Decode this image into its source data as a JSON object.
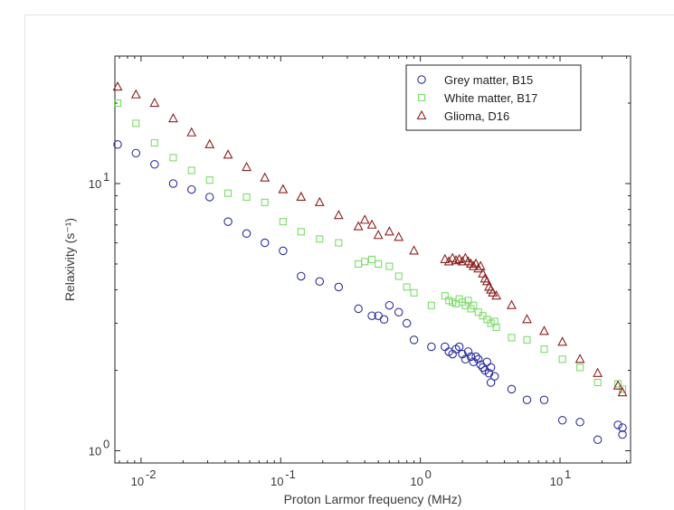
{
  "chart_data": {
    "type": "scatter",
    "title": "",
    "xlabel": "Proton Larmor frequency (MHz)",
    "ylabel": "Relaxivity (s⁻¹)",
    "xscale": "log",
    "yscale": "log",
    "xlim": [
      0.0065,
      32
    ],
    "ylim": [
      0.9,
      30
    ],
    "grid": false,
    "legend_position": "top-right",
    "x_ticks": [
      {
        "value": 0.01,
        "mantissa": "10",
        "exp": "-2"
      },
      {
        "value": 0.1,
        "mantissa": "10",
        "exp": "-1"
      },
      {
        "value": 1,
        "mantissa": "10",
        "exp": "0"
      },
      {
        "value": 10,
        "mantissa": "10",
        "exp": "1"
      }
    ],
    "y_ticks": [
      {
        "value": 1,
        "mantissa": "10",
        "exp": "0"
      },
      {
        "value": 10,
        "mantissa": "10",
        "exp": "1"
      }
    ],
    "series": [
      {
        "name": "Grey matter, B15",
        "marker": "circle",
        "color": "#2f2f9e",
        "points": [
          [
            0.0068,
            14
          ],
          [
            0.0092,
            13
          ],
          [
            0.0125,
            11.8
          ],
          [
            0.017,
            10
          ],
          [
            0.023,
            9.5
          ],
          [
            0.031,
            8.9
          ],
          [
            0.042,
            7.2
          ],
          [
            0.057,
            6.5
          ],
          [
            0.077,
            6.0
          ],
          [
            0.104,
            5.6
          ],
          [
            0.14,
            4.5
          ],
          [
            0.19,
            4.3
          ],
          [
            0.26,
            4.1
          ],
          [
            0.36,
            3.4
          ],
          [
            0.45,
            3.2
          ],
          [
            0.5,
            3.2
          ],
          [
            0.55,
            3.1
          ],
          [
            0.6,
            3.5
          ],
          [
            0.7,
            3.3
          ],
          [
            0.8,
            3.0
          ],
          [
            0.9,
            2.6
          ],
          [
            1.2,
            2.45
          ],
          [
            1.5,
            2.45
          ],
          [
            1.6,
            2.35
          ],
          [
            1.7,
            2.3
          ],
          [
            1.8,
            2.4
          ],
          [
            1.9,
            2.45
          ],
          [
            2.0,
            2.3
          ],
          [
            2.1,
            2.2
          ],
          [
            2.2,
            2.35
          ],
          [
            2.3,
            2.25
          ],
          [
            2.4,
            2.15
          ],
          [
            2.5,
            2.25
          ],
          [
            2.6,
            2.2
          ],
          [
            2.7,
            2.1
          ],
          [
            2.8,
            2.05
          ],
          [
            2.9,
            2.0
          ],
          [
            3.0,
            2.15
          ],
          [
            3.1,
            1.95
          ],
          [
            3.2,
            2.05
          ],
          [
            3.4,
            1.9
          ],
          [
            3.2,
            1.8
          ],
          [
            4.5,
            1.7
          ],
          [
            5.8,
            1.55
          ],
          [
            7.7,
            1.55
          ],
          [
            10.4,
            1.3
          ],
          [
            13.9,
            1.28
          ],
          [
            18.6,
            1.1
          ],
          [
            26,
            1.25
          ],
          [
            28,
            1.22
          ],
          [
            28,
            1.15
          ]
        ]
      },
      {
        "name": "White matter, B17",
        "marker": "square",
        "color": "#7ddc6a",
        "points": [
          [
            0.0068,
            20
          ],
          [
            0.0092,
            16.8
          ],
          [
            0.0125,
            14.2
          ],
          [
            0.017,
            12.5
          ],
          [
            0.023,
            11.2
          ],
          [
            0.031,
            10.3
          ],
          [
            0.042,
            9.2
          ],
          [
            0.057,
            8.9
          ],
          [
            0.077,
            8.5
          ],
          [
            0.104,
            7.2
          ],
          [
            0.14,
            6.6
          ],
          [
            0.19,
            6.2
          ],
          [
            0.26,
            6.0
          ],
          [
            0.36,
            5.0
          ],
          [
            0.4,
            5.1
          ],
          [
            0.45,
            5.2
          ],
          [
            0.5,
            5.0
          ],
          [
            0.6,
            4.9
          ],
          [
            0.7,
            4.5
          ],
          [
            0.8,
            4.1
          ],
          [
            0.9,
            3.9
          ],
          [
            1.2,
            3.5
          ],
          [
            1.5,
            3.8
          ],
          [
            1.6,
            3.65
          ],
          [
            1.7,
            3.6
          ],
          [
            1.8,
            3.55
          ],
          [
            1.9,
            3.7
          ],
          [
            2.0,
            3.6
          ],
          [
            2.1,
            3.5
          ],
          [
            2.2,
            3.65
          ],
          [
            2.3,
            3.4
          ],
          [
            2.4,
            3.5
          ],
          [
            2.6,
            3.3
          ],
          [
            2.8,
            3.2
          ],
          [
            3.0,
            3.1
          ],
          [
            3.2,
            3.0
          ],
          [
            3.4,
            3.05
          ],
          [
            3.5,
            2.9
          ],
          [
            4.5,
            2.65
          ],
          [
            5.8,
            2.6
          ],
          [
            7.7,
            2.4
          ],
          [
            10.4,
            2.2
          ],
          [
            13.9,
            2.05
          ],
          [
            18.6,
            1.8
          ],
          [
            26,
            1.78
          ],
          [
            28,
            1.7
          ]
        ]
      },
      {
        "name": "Glioma, D16",
        "marker": "triangle",
        "color": "#8c2020",
        "points": [
          [
            0.0068,
            23
          ],
          [
            0.0092,
            21.5
          ],
          [
            0.0125,
            20
          ],
          [
            0.017,
            17.5
          ],
          [
            0.023,
            15.5
          ],
          [
            0.031,
            14
          ],
          [
            0.042,
            12.8
          ],
          [
            0.057,
            11.5
          ],
          [
            0.077,
            10.5
          ],
          [
            0.104,
            9.5
          ],
          [
            0.14,
            8.9
          ],
          [
            0.19,
            8.5
          ],
          [
            0.26,
            7.6
          ],
          [
            0.36,
            6.9
          ],
          [
            0.4,
            7.3
          ],
          [
            0.45,
            7.0
          ],
          [
            0.5,
            6.4
          ],
          [
            0.6,
            6.6
          ],
          [
            0.7,
            6.3
          ],
          [
            0.9,
            5.6
          ],
          [
            1.5,
            5.2
          ],
          [
            1.6,
            5.1
          ],
          [
            1.7,
            5.25
          ],
          [
            1.8,
            5.15
          ],
          [
            1.9,
            5.2
          ],
          [
            2.0,
            5.1
          ],
          [
            2.1,
            5.25
          ],
          [
            2.2,
            5.1
          ],
          [
            2.3,
            5.0
          ],
          [
            2.4,
            4.9
          ],
          [
            2.5,
            5.0
          ],
          [
            2.6,
            4.8
          ],
          [
            2.7,
            4.9
          ],
          [
            2.8,
            4.6
          ],
          [
            2.9,
            4.4
          ],
          [
            3.0,
            4.3
          ],
          [
            3.1,
            4.1
          ],
          [
            3.2,
            4.0
          ],
          [
            3.3,
            3.9
          ],
          [
            3.5,
            3.8
          ],
          [
            4.5,
            3.5
          ],
          [
            5.8,
            3.1
          ],
          [
            7.7,
            2.8
          ],
          [
            10.4,
            2.55
          ],
          [
            13.9,
            2.2
          ],
          [
            18.6,
            1.95
          ],
          [
            26,
            1.75
          ],
          [
            28,
            1.65
          ]
        ]
      }
    ]
  }
}
